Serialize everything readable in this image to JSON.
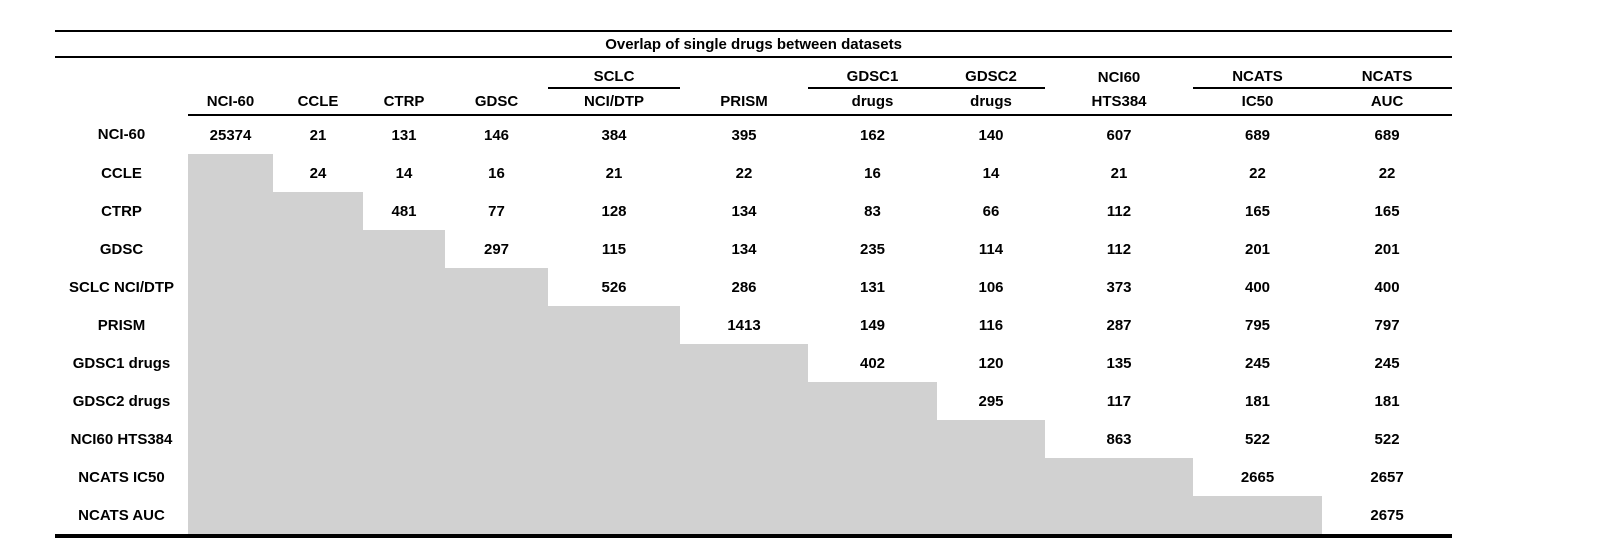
{
  "colors": {
    "shade_gray": "#d1d1d1",
    "rule_black": "#000000",
    "background": "#ffffff"
  },
  "chart_data": {
    "type": "table",
    "title": "Overlap of single drugs between datasets",
    "layout_note": "upper-triangular overlap matrix; cells below the diagonal are shaded gray with no value",
    "columns": [
      {
        "top": "",
        "label": "NCI-60",
        "underline": false
      },
      {
        "top": "",
        "label": "CCLE",
        "underline": false
      },
      {
        "top": "",
        "label": "CTRP",
        "underline": false
      },
      {
        "top": "",
        "label": "GDSC",
        "underline": false
      },
      {
        "top": "SCLC",
        "label": "NCI/DTP",
        "underline": true
      },
      {
        "top": "",
        "label": "PRISM",
        "underline": false
      },
      {
        "top": "GDSC1",
        "label": "drugs",
        "underline": true
      },
      {
        "top": "GDSC2",
        "label": "drugs",
        "underline": true
      },
      {
        "top": "NCI60",
        "label": "HTS384",
        "underline": false
      },
      {
        "top": "NCATS",
        "label": "IC50",
        "underline": true
      },
      {
        "top": "NCATS",
        "label": "AUC",
        "underline": true
      }
    ],
    "rows": [
      {
        "label": "NCI-60",
        "values": [
          25374,
          21,
          131,
          146,
          384,
          395,
          162,
          140,
          607,
          689,
          689
        ]
      },
      {
        "label": "CCLE",
        "values": [
          null,
          24,
          14,
          16,
          21,
          22,
          16,
          14,
          21,
          22,
          22
        ]
      },
      {
        "label": "CTRP",
        "values": [
          null,
          null,
          481,
          77,
          128,
          134,
          83,
          66,
          112,
          165,
          165
        ]
      },
      {
        "label": "GDSC",
        "values": [
          null,
          null,
          null,
          297,
          115,
          134,
          235,
          114,
          112,
          201,
          201
        ]
      },
      {
        "label": "SCLC NCI/DTP",
        "values": [
          null,
          null,
          null,
          null,
          526,
          286,
          131,
          106,
          373,
          400,
          400
        ]
      },
      {
        "label": "PRISM",
        "values": [
          null,
          null,
          null,
          null,
          null,
          1413,
          149,
          116,
          287,
          795,
          797
        ]
      },
      {
        "label": "GDSC1 drugs",
        "values": [
          null,
          null,
          null,
          null,
          null,
          null,
          402,
          120,
          135,
          245,
          245
        ]
      },
      {
        "label": "GDSC2 drugs",
        "values": [
          null,
          null,
          null,
          null,
          null,
          null,
          null,
          295,
          117,
          181,
          181
        ]
      },
      {
        "label": "NCI60 HTS384",
        "values": [
          null,
          null,
          null,
          null,
          null,
          null,
          null,
          null,
          863,
          522,
          522
        ]
      },
      {
        "label": "NCATS IC50",
        "values": [
          null,
          null,
          null,
          null,
          null,
          null,
          null,
          null,
          null,
          2665,
          2657
        ]
      },
      {
        "label": "NCATS AUC",
        "values": [
          null,
          null,
          null,
          null,
          null,
          null,
          null,
          null,
          null,
          null,
          2675
        ]
      }
    ]
  }
}
